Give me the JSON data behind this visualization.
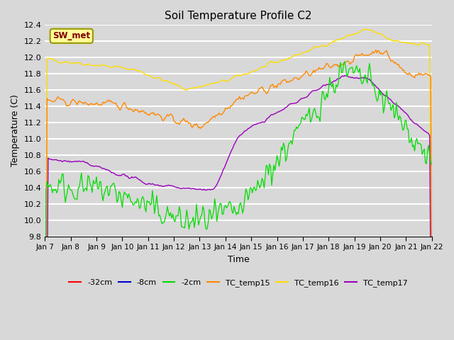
{
  "title": "Soil Temperature Profile C2",
  "xlabel": "Time",
  "ylabel": "Temperature (C)",
  "ylim": [
    9.8,
    12.4
  ],
  "xlim": [
    0,
    360
  ],
  "xtick_positions": [
    0,
    24,
    48,
    72,
    96,
    120,
    144,
    168,
    192,
    216,
    240,
    264,
    288,
    312,
    336,
    360
  ],
  "xtick_labels": [
    "Jan 7",
    "Jan 8",
    "Jan 9",
    "Jan 10",
    "Jan 11",
    "Jan 12",
    "Jan 13",
    "Jan 14",
    "Jan 15",
    "Jan 16",
    "Jan 17",
    "Jan 18",
    "Jan 19",
    "Jan 20",
    "Jan 21",
    "Jan 22"
  ],
  "bg_color": "#d8d8d8",
  "plot_bg_color": "#d8d8d8",
  "grid_color": "#ffffff",
  "sw_met_text": "SW_met",
  "sw_met_bg": "#ffff99",
  "sw_met_text_color": "#800000",
  "series": [
    {
      "label": "-32cm",
      "color": "#ff0000"
    },
    {
      "label": "-8cm",
      "color": "#0000cc"
    },
    {
      "label": "-2cm",
      "color": "#00dd00"
    },
    {
      "label": "TC_temp15",
      "color": "#ff8800"
    },
    {
      "label": "TC_temp16",
      "color": "#ffdd00"
    },
    {
      "label": "TC_temp17",
      "color": "#9900bb"
    }
  ],
  "n_points": 361,
  "seed": 42
}
